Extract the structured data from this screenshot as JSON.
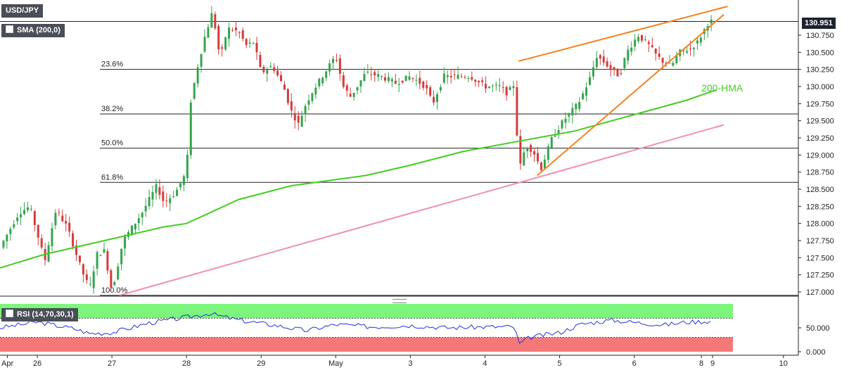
{
  "instrument": {
    "symbol": "USD/JPY",
    "indicator": "SMA (200,0)",
    "last_price": "130.951"
  },
  "rsi_panel": {
    "label": "RSI (14,70,30,1)",
    "levels": [
      "50.000",
      "0.000"
    ]
  },
  "colors": {
    "up_candle": "#34a44c",
    "down_candle": "#d63a3a",
    "hma": "#44cc22",
    "wedge": "#f58220",
    "support": "#f090b0",
    "rsi_line": "#2233dd",
    "rsi_overbought": "#7df57d",
    "rsi_oversold": "#f57878"
  },
  "chart_data": {
    "type": "candlestick",
    "price_axis": {
      "min": 127.0,
      "max": 131.0,
      "ticks": [
        "130.750",
        "130.500",
        "130.250",
        "130.000",
        "129.750",
        "129.500",
        "129.250",
        "129.000",
        "128.750",
        "128.500",
        "128.250",
        "128.000",
        "127.750",
        "127.500",
        "127.250",
        "127.000"
      ]
    },
    "time_axis": {
      "range": [
        -0.2,
        10.5
      ],
      "ticks": [
        {
          "t": -0.1,
          "label": "Apr"
        },
        {
          "t": 0.3,
          "label": "26"
        },
        {
          "t": 1.3,
          "label": "27"
        },
        {
          "t": 2.3,
          "label": "28"
        },
        {
          "t": 3.3,
          "label": "29"
        },
        {
          "t": 4.3,
          "label": "May"
        },
        {
          "t": 5.3,
          "label": "3"
        },
        {
          "t": 6.3,
          "label": "4"
        },
        {
          "t": 7.3,
          "label": "5"
        },
        {
          "t": 8.3,
          "label": "6"
        },
        {
          "t": 9.2,
          "label": "8"
        },
        {
          "t": 9.35,
          "label": "9"
        },
        {
          "t": 10.3,
          "label": "10"
        }
      ]
    },
    "price_path": [
      [
        -0.2,
        127.65
      ],
      [
        0.05,
        128.15
      ],
      [
        0.2,
        128.25
      ],
      [
        0.3,
        127.85
      ],
      [
        0.4,
        127.45
      ],
      [
        0.55,
        128.2
      ],
      [
        0.7,
        127.95
      ],
      [
        0.9,
        127.3
      ],
      [
        1.0,
        127.05
      ],
      [
        1.1,
        127.55
      ],
      [
        1.2,
        127.6
      ],
      [
        1.3,
        127.0
      ],
      [
        1.45,
        127.75
      ],
      [
        1.7,
        128.15
      ],
      [
        1.9,
        128.55
      ],
      [
        2.0,
        128.3
      ],
      [
        2.15,
        128.45
      ],
      [
        2.3,
        128.75
      ],
      [
        2.35,
        129.75
      ],
      [
        2.45,
        130.3
      ],
      [
        2.55,
        130.75
      ],
      [
        2.65,
        131.1
      ],
      [
        2.75,
        130.4
      ],
      [
        2.85,
        130.85
      ],
      [
        3.0,
        130.8
      ],
      [
        3.1,
        130.6
      ],
      [
        3.2,
        130.65
      ],
      [
        3.3,
        130.2
      ],
      [
        3.45,
        130.3
      ],
      [
        3.6,
        130.0
      ],
      [
        3.7,
        129.65
      ],
      [
        3.8,
        129.45
      ],
      [
        3.9,
        129.75
      ],
      [
        4.0,
        129.95
      ],
      [
        4.15,
        130.2
      ],
      [
        4.3,
        130.45
      ],
      [
        4.4,
        130.0
      ],
      [
        4.5,
        129.85
      ],
      [
        4.7,
        130.2
      ],
      [
        4.9,
        130.15
      ],
      [
        5.1,
        130.05
      ],
      [
        5.3,
        130.15
      ],
      [
        5.5,
        130.0
      ],
      [
        5.6,
        129.75
      ],
      [
        5.75,
        130.15
      ],
      [
        5.9,
        130.15
      ],
      [
        6.1,
        130.15
      ],
      [
        6.3,
        130.0
      ],
      [
        6.5,
        130.0
      ],
      [
        6.6,
        129.9
      ],
      [
        6.7,
        130.05
      ],
      [
        6.75,
        128.75
      ],
      [
        6.85,
        129.15
      ],
      [
        6.95,
        129.05
      ],
      [
        7.05,
        128.8
      ],
      [
        7.2,
        129.25
      ],
      [
        7.35,
        129.5
      ],
      [
        7.55,
        129.75
      ],
      [
        7.7,
        130.1
      ],
      [
        7.8,
        130.45
      ],
      [
        7.95,
        130.3
      ],
      [
        8.1,
        130.15
      ],
      [
        8.2,
        130.5
      ],
      [
        8.35,
        130.75
      ],
      [
        8.5,
        130.6
      ],
      [
        8.6,
        130.45
      ],
      [
        8.7,
        130.35
      ],
      [
        8.8,
        130.3
      ],
      [
        8.9,
        130.5
      ],
      [
        9.05,
        130.55
      ],
      [
        9.15,
        130.65
      ],
      [
        9.3,
        130.95
      ],
      [
        9.35,
        130.951
      ]
    ],
    "hma_200": [
      [
        -0.2,
        127.35
      ],
      [
        0.4,
        127.55
      ],
      [
        1.2,
        127.75
      ],
      [
        2.0,
        127.95
      ],
      [
        2.3,
        128.0
      ],
      [
        3.0,
        128.35
      ],
      [
        3.7,
        128.55
      ],
      [
        4.7,
        128.7
      ],
      [
        5.3,
        128.85
      ],
      [
        6.0,
        129.05
      ],
      [
        6.5,
        129.15
      ],
      [
        7.0,
        129.25
      ],
      [
        7.5,
        129.35
      ],
      [
        8.0,
        129.5
      ],
      [
        8.5,
        129.65
      ],
      [
        9.0,
        129.8
      ],
      [
        9.4,
        129.95
      ]
    ],
    "fibonacci": [
      {
        "label": "23.6%",
        "price": 130.25
      },
      {
        "label": "38.2%",
        "price": 129.6
      },
      {
        "label": "50.0%",
        "price": 129.1
      },
      {
        "label": "61.8%",
        "price": 128.6
      },
      {
        "label": "100.0%",
        "price": 126.95
      }
    ],
    "trendlines": [
      {
        "name": "wedge-top",
        "color": "wedge",
        "from": [
          6.75,
          130.37
        ],
        "to": [
          9.55,
          131.17
        ]
      },
      {
        "name": "wedge-bottom",
        "color": "wedge",
        "from": [
          7.0,
          128.7
        ],
        "to": [
          9.5,
          131.05
        ]
      },
      {
        "name": "support-line",
        "color": "support",
        "from": [
          1.4,
          126.95
        ],
        "to": [
          9.5,
          129.44
        ]
      }
    ],
    "annotations": [
      {
        "text": "200-HMA",
        "t": 9.2,
        "price": 129.93
      }
    ],
    "resistance_line": 130.95,
    "top_line": 131.3,
    "rsi": {
      "ylim": [
        0,
        100
      ],
      "overbought": 70,
      "oversold": 30,
      "mid": 50,
      "values": [
        [
          -0.2,
          50
        ],
        [
          0.3,
          62
        ],
        [
          0.8,
          48
        ],
        [
          1.0,
          38
        ],
        [
          1.3,
          40
        ],
        [
          1.8,
          60
        ],
        [
          2.3,
          72
        ],
        [
          2.6,
          80
        ],
        [
          3.0,
          66
        ],
        [
          3.5,
          55
        ],
        [
          3.9,
          44
        ],
        [
          4.3,
          57
        ],
        [
          4.8,
          52
        ],
        [
          5.3,
          55
        ],
        [
          5.8,
          50
        ],
        [
          6.3,
          52
        ],
        [
          6.7,
          52
        ],
        [
          6.75,
          15
        ],
        [
          6.9,
          30
        ],
        [
          7.3,
          40
        ],
        [
          7.6,
          58
        ],
        [
          8.0,
          66
        ],
        [
          8.4,
          60
        ],
        [
          8.7,
          56
        ],
        [
          9.0,
          62
        ],
        [
          9.35,
          64
        ]
      ]
    }
  }
}
